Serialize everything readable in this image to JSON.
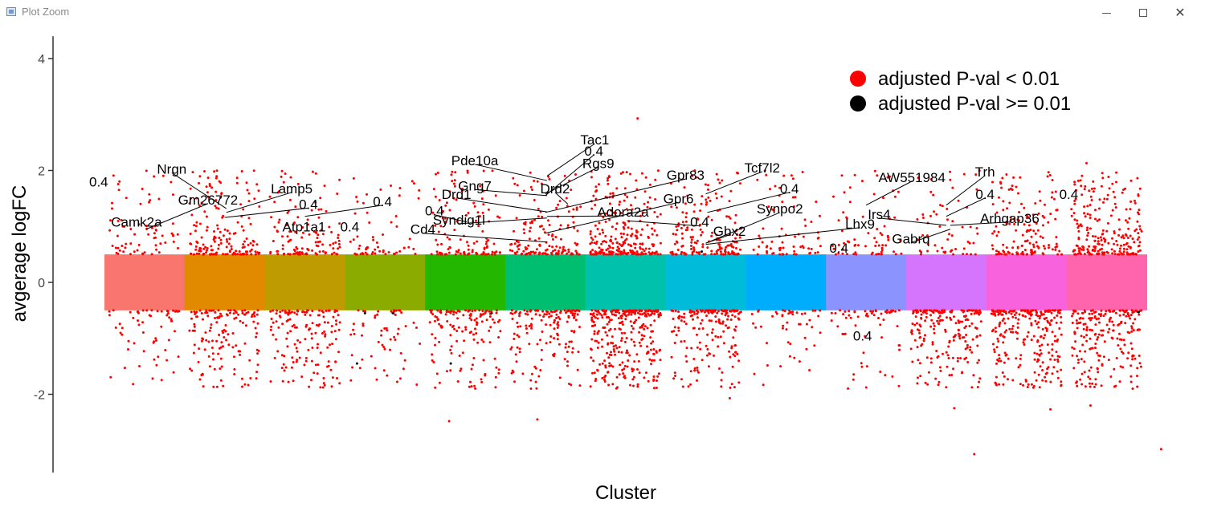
{
  "window": {
    "title": "Plot Zoom",
    "minimize_glyph": "minimize-icon",
    "maximize_glyph": "maximize-icon",
    "close_glyph": "✕"
  },
  "chart_data": {
    "type": "scatter",
    "subtype": "differential-expression jitter plot by cluster",
    "xlabel": "Cluster",
    "ylabel": "avgerage logFC",
    "ylim": [
      -3.4,
      4.4
    ],
    "yticks": [
      -2,
      0,
      2,
      4
    ],
    "ytick_labels": [
      "-2",
      "0",
      "2",
      "4"
    ],
    "grid": false,
    "legend_position": "top-right",
    "legend": [
      {
        "label": "adjusted P-val < 0.01",
        "color": "#ff0000"
      },
      {
        "label": "adjusted P-val >= 0.01",
        "color": "#000000"
      }
    ],
    "band_range": [
      -0.5,
      0.5
    ],
    "clusters": [
      {
        "index": 0,
        "color": "#f8766d"
      },
      {
        "index": 1,
        "color": "#e18a00"
      },
      {
        "index": 2,
        "color": "#be9c00"
      },
      {
        "index": 3,
        "color": "#8cab00"
      },
      {
        "index": 4,
        "color": "#24b700"
      },
      {
        "index": 5,
        "color": "#00be70"
      },
      {
        "index": 6,
        "color": "#00c1ab"
      },
      {
        "index": 7,
        "color": "#00bbda"
      },
      {
        "index": 8,
        "color": "#00acfc"
      },
      {
        "index": 9,
        "color": "#8b93ff"
      },
      {
        "index": 10,
        "color": "#d575fe"
      },
      {
        "index": 11,
        "color": "#f962dd"
      },
      {
        "index": 12,
        "color": "#ff65ac"
      }
    ],
    "labels": [
      {
        "text": "0.4",
        "cluster": 0,
        "x": 0.24,
        "y": 1.8
      },
      {
        "text": "Nrgn",
        "cluster": 1,
        "x": 0.2,
        "y": 2.03,
        "point_x": 0.52,
        "point_y": 1.32
      },
      {
        "text": "Gm26772",
        "cluster": 0,
        "x": 0.86,
        "y": 1.48,
        "point_x": 0.52,
        "point_y": 0.95
      },
      {
        "text": "Lamp5",
        "cluster": 1,
        "x": 0.88,
        "y": 1.68,
        "point_x": 0.52,
        "point_y": 1.25
      },
      {
        "text": "Camk2a",
        "cluster": 1,
        "x": 0.0,
        "y": 1.08
      },
      {
        "text": "Atp1a1",
        "cluster": 1,
        "x": 0.95,
        "y": 1.0
      },
      {
        "text": "0.4",
        "cluster": 2,
        "x": 0.52,
        "y": 1.4,
        "point_x": -0.5,
        "point_y": 1.16
      },
      {
        "text": "0.4",
        "cluster": 2,
        "x": 0.94,
        "y": 1.45,
        "point_x": 0.5,
        "point_y": 1.18
      },
      {
        "text": "0.4",
        "cluster": 3,
        "x": 0.3,
        "y": 1.0
      },
      {
        "text": "0.4",
        "cluster": 3,
        "x": 0.78,
        "y": 1.28,
        "point_x": 1.52,
        "point_y": 1.08
      },
      {
        "text": "Cd4",
        "cluster": 4,
        "x": 0.26,
        "y": 0.95,
        "point_x": 1.52,
        "point_y": 0.72
      },
      {
        "text": "Drd1",
        "cluster": 4,
        "x": 0.45,
        "y": 1.58,
        "point_x": 1.52,
        "point_y": 1.26
      },
      {
        "text": "Pde10a",
        "cluster": 5,
        "x": 0.1,
        "y": 2.18,
        "point_x": 0.52,
        "point_y": 1.82
      },
      {
        "text": "Tac1",
        "cluster": 5,
        "x": 0.78,
        "y": 2.55,
        "point_x": 0.52,
        "point_y": 1.9
      },
      {
        "text": "Rgs9",
        "cluster": 5,
        "x": 0.8,
        "y": 2.13,
        "point_x": 0.5,
        "point_y": 1.58
      },
      {
        "text": "0.4",
        "cluster": 6,
        "x": 0.32,
        "y": 2.35,
        "point_x": -0.5,
        "point_y": 1.55
      },
      {
        "text": "Gng7",
        "cluster": 5,
        "x": 0.1,
        "y": 1.73,
        "point_x": 0.52,
        "point_y": 1.55
      },
      {
        "text": "Drd2",
        "cluster": 6,
        "x": 0.1,
        "y": 1.68,
        "point_x": -0.22,
        "point_y": 1.4
      },
      {
        "text": "Gpr83",
        "cluster": 6,
        "x": 0.84,
        "y": 1.92,
        "point_x": -0.5,
        "point_y": 1.25
      },
      {
        "text": "Syndig1l",
        "cluster": 5,
        "x": 0.01,
        "y": 1.12,
        "point_x": 0.52,
        "point_y": 1.15
      },
      {
        "text": "Adora2a",
        "cluster": 5,
        "x": 0.94,
        "y": 1.26,
        "point_x": 0.52,
        "point_y": 1.18
      },
      {
        "text": "Gpr6",
        "cluster": 6,
        "x": 0.8,
        "y": 1.5,
        "point_x": -0.5,
        "point_y": 0.88
      },
      {
        "text": "0.4",
        "cluster": 6,
        "x": 0.92,
        "y": 1.08,
        "point_x": 0.52,
        "point_y": 1.1
      },
      {
        "text": "Tcf7l2",
        "cluster": 7,
        "x": 0.82,
        "y": 2.05,
        "point_x": 0.5,
        "point_y": 1.58
      },
      {
        "text": "0.4",
        "cluster": 8,
        "x": 0.52,
        "y": 1.68,
        "point_x": -0.48,
        "point_y": 1.25
      },
      {
        "text": "Synpo2",
        "cluster": 7,
        "x": 0.92,
        "y": 1.32,
        "point_x": 0.5,
        "point_y": 0.7
      },
      {
        "text": "Gbx2",
        "cluster": 8,
        "x": 0.18,
        "y": 0.92,
        "point_x": -0.5,
        "point_y": 0.7
      },
      {
        "text": "Lhx9",
        "cluster": 8,
        "x": 0.92,
        "y": 1.05,
        "point_x": -0.5,
        "point_y": 0.68
      },
      {
        "text": "0.4",
        "cluster": 8,
        "x": 0.8,
        "y": 0.62
      },
      {
        "text": "0.4",
        "cluster": 9,
        "x": 0.48,
        "y": -0.95
      },
      {
        "text": "AW551984",
        "cluster": 9,
        "x": 0.76,
        "y": 1.88,
        "point_x": 0.5,
        "point_y": 1.38
      },
      {
        "text": "Trh",
        "cluster": 10,
        "x": 0.72,
        "y": 1.98,
        "point_x": 0.5,
        "point_y": 1.38
      },
      {
        "text": "0.4",
        "cluster": 10,
        "x": 0.72,
        "y": 1.58,
        "point_x": 0.5,
        "point_y": 1.18
      },
      {
        "text": "Irs4",
        "cluster": 10,
        "x": 0.12,
        "y": 1.22,
        "point_x": 0.5,
        "point_y": 1.02
      },
      {
        "text": "Arhgap36",
        "cluster": 10,
        "x": 0.86,
        "y": 1.15,
        "point_x": 0.55,
        "point_y": 1.02
      },
      {
        "text": "Gabrq",
        "cluster": 10,
        "x": 0.3,
        "y": 0.78,
        "point_x": 0.55,
        "point_y": 0.95
      },
      {
        "text": "0.4",
        "cluster": 11,
        "x": 0.74,
        "y": 1.58
      }
    ]
  }
}
